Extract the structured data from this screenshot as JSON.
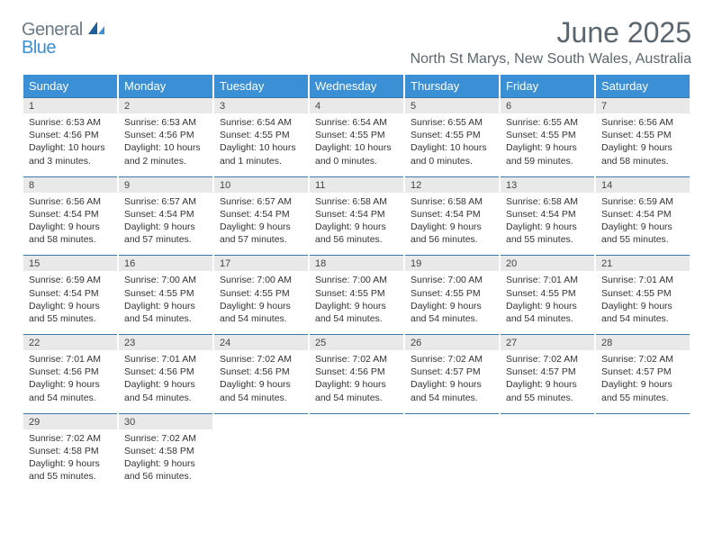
{
  "logo": {
    "text1": "General",
    "text2": "Blue"
  },
  "title": "June 2025",
  "location": "North St Marys, New South Wales, Australia",
  "weekdays": [
    "Sunday",
    "Monday",
    "Tuesday",
    "Wednesday",
    "Thursday",
    "Friday",
    "Saturday"
  ],
  "colors": {
    "header_bg": "#3b8fd4",
    "header_text": "#ffffff",
    "daynum_bg": "#e9e9e9",
    "border": "#3b7aa8",
    "title_color": "#5a6770",
    "logo_gray": "#6b7a86",
    "logo_blue": "#3b8fd4"
  },
  "days": [
    {
      "n": 1,
      "sunrise": "6:53 AM",
      "sunset": "4:56 PM",
      "daylight": "10 hours and 3 minutes."
    },
    {
      "n": 2,
      "sunrise": "6:53 AM",
      "sunset": "4:56 PM",
      "daylight": "10 hours and 2 minutes."
    },
    {
      "n": 3,
      "sunrise": "6:54 AM",
      "sunset": "4:55 PM",
      "daylight": "10 hours and 1 minutes."
    },
    {
      "n": 4,
      "sunrise": "6:54 AM",
      "sunset": "4:55 PM",
      "daylight": "10 hours and 0 minutes."
    },
    {
      "n": 5,
      "sunrise": "6:55 AM",
      "sunset": "4:55 PM",
      "daylight": "10 hours and 0 minutes."
    },
    {
      "n": 6,
      "sunrise": "6:55 AM",
      "sunset": "4:55 PM",
      "daylight": "9 hours and 59 minutes."
    },
    {
      "n": 7,
      "sunrise": "6:56 AM",
      "sunset": "4:55 PM",
      "daylight": "9 hours and 58 minutes."
    },
    {
      "n": 8,
      "sunrise": "6:56 AM",
      "sunset": "4:54 PM",
      "daylight": "9 hours and 58 minutes."
    },
    {
      "n": 9,
      "sunrise": "6:57 AM",
      "sunset": "4:54 PM",
      "daylight": "9 hours and 57 minutes."
    },
    {
      "n": 10,
      "sunrise": "6:57 AM",
      "sunset": "4:54 PM",
      "daylight": "9 hours and 57 minutes."
    },
    {
      "n": 11,
      "sunrise": "6:58 AM",
      "sunset": "4:54 PM",
      "daylight": "9 hours and 56 minutes."
    },
    {
      "n": 12,
      "sunrise": "6:58 AM",
      "sunset": "4:54 PM",
      "daylight": "9 hours and 56 minutes."
    },
    {
      "n": 13,
      "sunrise": "6:58 AM",
      "sunset": "4:54 PM",
      "daylight": "9 hours and 55 minutes."
    },
    {
      "n": 14,
      "sunrise": "6:59 AM",
      "sunset": "4:54 PM",
      "daylight": "9 hours and 55 minutes."
    },
    {
      "n": 15,
      "sunrise": "6:59 AM",
      "sunset": "4:54 PM",
      "daylight": "9 hours and 55 minutes."
    },
    {
      "n": 16,
      "sunrise": "7:00 AM",
      "sunset": "4:55 PM",
      "daylight": "9 hours and 54 minutes."
    },
    {
      "n": 17,
      "sunrise": "7:00 AM",
      "sunset": "4:55 PM",
      "daylight": "9 hours and 54 minutes."
    },
    {
      "n": 18,
      "sunrise": "7:00 AM",
      "sunset": "4:55 PM",
      "daylight": "9 hours and 54 minutes."
    },
    {
      "n": 19,
      "sunrise": "7:00 AM",
      "sunset": "4:55 PM",
      "daylight": "9 hours and 54 minutes."
    },
    {
      "n": 20,
      "sunrise": "7:01 AM",
      "sunset": "4:55 PM",
      "daylight": "9 hours and 54 minutes."
    },
    {
      "n": 21,
      "sunrise": "7:01 AM",
      "sunset": "4:55 PM",
      "daylight": "9 hours and 54 minutes."
    },
    {
      "n": 22,
      "sunrise": "7:01 AM",
      "sunset": "4:56 PM",
      "daylight": "9 hours and 54 minutes."
    },
    {
      "n": 23,
      "sunrise": "7:01 AM",
      "sunset": "4:56 PM",
      "daylight": "9 hours and 54 minutes."
    },
    {
      "n": 24,
      "sunrise": "7:02 AM",
      "sunset": "4:56 PM",
      "daylight": "9 hours and 54 minutes."
    },
    {
      "n": 25,
      "sunrise": "7:02 AM",
      "sunset": "4:56 PM",
      "daylight": "9 hours and 54 minutes."
    },
    {
      "n": 26,
      "sunrise": "7:02 AM",
      "sunset": "4:57 PM",
      "daylight": "9 hours and 54 minutes."
    },
    {
      "n": 27,
      "sunrise": "7:02 AM",
      "sunset": "4:57 PM",
      "daylight": "9 hours and 55 minutes."
    },
    {
      "n": 28,
      "sunrise": "7:02 AM",
      "sunset": "4:57 PM",
      "daylight": "9 hours and 55 minutes."
    },
    {
      "n": 29,
      "sunrise": "7:02 AM",
      "sunset": "4:58 PM",
      "daylight": "9 hours and 55 minutes."
    },
    {
      "n": 30,
      "sunrise": "7:02 AM",
      "sunset": "4:58 PM",
      "daylight": "9 hours and 56 minutes."
    }
  ],
  "labels": {
    "sunrise": "Sunrise:",
    "sunset": "Sunset:",
    "daylight": "Daylight:"
  },
  "start_weekday": 0,
  "weeks": 5
}
